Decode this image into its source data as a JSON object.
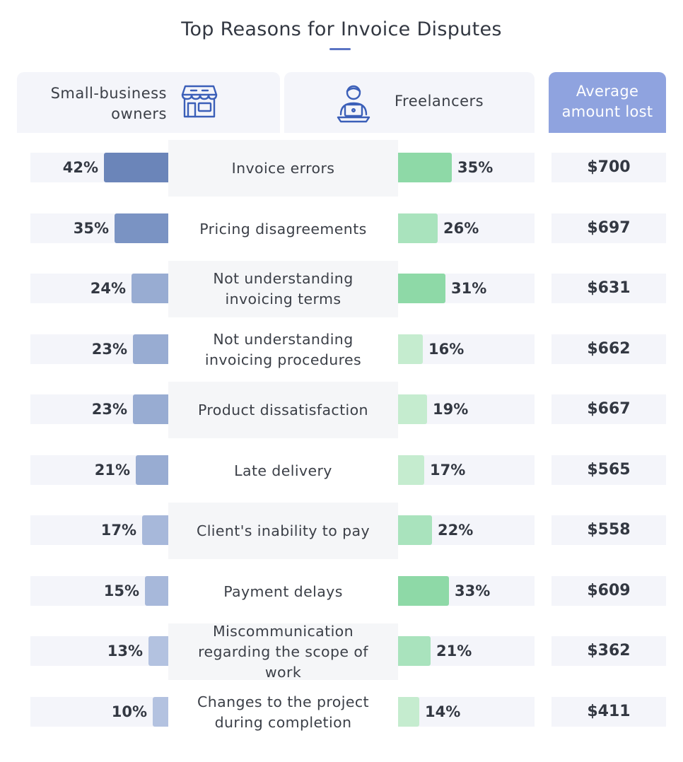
{
  "chart_data": {
    "type": "bar",
    "title": "Top Reasons for Invoice Disputes",
    "headers": {
      "small_business": "Small-business owners",
      "small_business_line1": "Small-business",
      "small_business_line2": "owners",
      "freelancers": "Freelancers",
      "average_line1": "Average",
      "average_line2": "amount lost"
    },
    "categories": [
      "Invoice errors",
      "Pricing disagreements",
      "Not understanding invoicing terms",
      "Not understanding invoicing procedures",
      "Product dissatisfaction",
      "Late delivery",
      "Client's inability to pay",
      "Payment delays",
      "Miscommunication regarding the scope of work",
      "Changes to the project during completion"
    ],
    "series": [
      {
        "name": "Small-business owners",
        "unit": "%",
        "values": [
          42,
          35,
          24,
          23,
          23,
          21,
          17,
          15,
          13,
          10
        ]
      },
      {
        "name": "Freelancers",
        "unit": "%",
        "values": [
          35,
          26,
          31,
          16,
          19,
          17,
          22,
          33,
          21,
          14
        ]
      },
      {
        "name": "Average amount lost",
        "unit": "$",
        "values": [
          700,
          697,
          631,
          662,
          667,
          565,
          558,
          609,
          362,
          411
        ]
      }
    ],
    "rows": [
      {
        "reason": "Invoice errors",
        "sb_label": "42%",
        "fl_label": "35%",
        "avg_label": "$700"
      },
      {
        "reason": "Pricing disagreements",
        "sb_label": "35%",
        "fl_label": "26%",
        "avg_label": "$697"
      },
      {
        "reason": "Not understanding invoicing terms",
        "sb_label": "24%",
        "fl_label": "31%",
        "avg_label": "$631"
      },
      {
        "reason": "Not understanding invoicing procedures",
        "sb_label": "23%",
        "fl_label": "16%",
        "avg_label": "$662"
      },
      {
        "reason": "Product dissatisfaction",
        "sb_label": "23%",
        "fl_label": "19%",
        "avg_label": "$667"
      },
      {
        "reason": "Late delivery",
        "sb_label": "21%",
        "fl_label": "17%",
        "avg_label": "$565"
      },
      {
        "reason": "Client's inability to pay",
        "sb_label": "17%",
        "fl_label": "22%",
        "avg_label": "$558"
      },
      {
        "reason": "Payment delays",
        "sb_label": "15%",
        "fl_label": "33%",
        "avg_label": "$609"
      },
      {
        "reason": "Miscommunication regarding the scope of work",
        "sb_label": "13%",
        "fl_label": "21%",
        "avg_label": "$362"
      },
      {
        "reason": "Changes to the project during completion",
        "sb_label": "10%",
        "fl_label": "14%",
        "avg_label": "$411"
      }
    ],
    "colors": {
      "small_business": [
        "#6b85b9",
        "#7a93c3",
        "#8ba1cc",
        "#98acd2",
        "#a7b8da",
        "#b3c2e0"
      ],
      "freelancers": [
        "#8ed9a7",
        "#a9e3bd",
        "#c5eccf"
      ],
      "average_header": "#8fa3df",
      "title_accent": "#5b74c4"
    },
    "icons": {
      "small_business": "storefront-icon",
      "freelancers": "freelancer-laptop-icon"
    }
  }
}
